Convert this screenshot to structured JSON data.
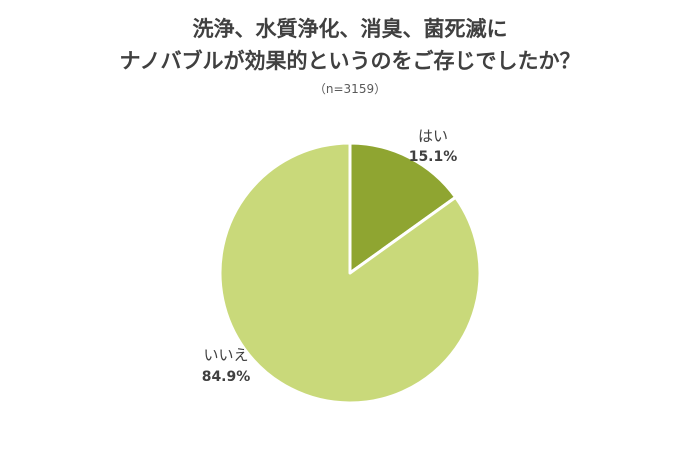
{
  "chart_data": {
    "type": "pie",
    "title_line1": "洗浄、水質浄化、消臭、菌死滅に",
    "title_line2": "ナノバブルが効果的というのをご存じでしたか？",
    "subtitle": "（n=3159）",
    "slices": [
      {
        "label": "はい",
        "value": 15.1,
        "value_label": "15.1%",
        "color": "#8fa531"
      },
      {
        "label": "いいえ",
        "value": 84.9,
        "value_label": "84.9%",
        "color": "#c9d97a"
      }
    ],
    "legend": "none"
  }
}
